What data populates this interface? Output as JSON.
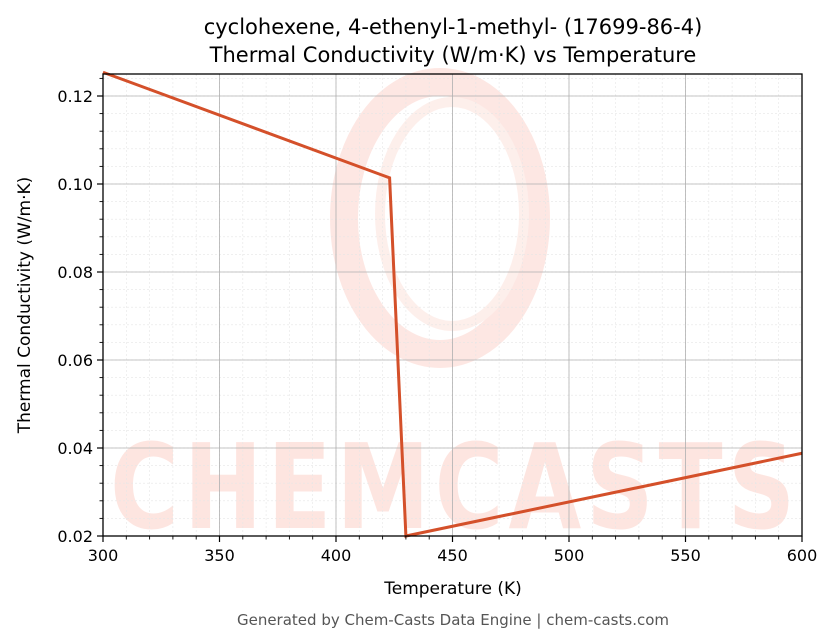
{
  "chart_data": {
    "type": "line",
    "title_line1": "cyclohexene, 4-ethenyl-1-methyl- (17699-86-4)",
    "title_line2": "Thermal Conductivity (W/m·K) vs Temperature",
    "xlabel": "Temperature (K)",
    "ylabel": "Thermal Conductivity (W/m·K)",
    "xlim": [
      300,
      600
    ],
    "ylim": [
      0.02,
      0.125
    ],
    "x_ticks": [
      300,
      350,
      400,
      450,
      500,
      550,
      600
    ],
    "y_ticks": [
      0.02,
      0.04,
      0.06,
      0.08,
      0.1,
      0.12
    ],
    "grid": true,
    "series": [
      {
        "color": "#d4502a",
        "x": [
          300,
          423,
          430,
          600
        ],
        "y": [
          0.1254,
          0.1014,
          0.02,
          0.0388
        ]
      }
    ]
  },
  "watermark": {
    "text": "CHEMCASTS",
    "color": "#fdd5cd"
  },
  "footer": {
    "text": "Generated by Chem-Casts Data Engine | chem-casts.com"
  }
}
